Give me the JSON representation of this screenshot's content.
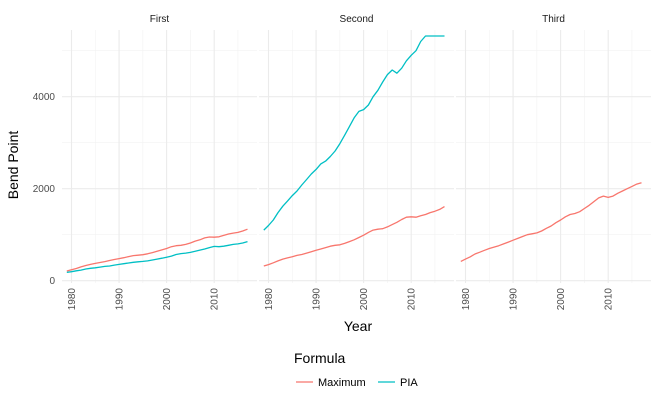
{
  "chart_data": {
    "type": "line",
    "facets": [
      "First",
      "Second",
      "Third"
    ],
    "xlabel": "Year",
    "ylabel": "Bend Point",
    "xlim": [
      1978,
      2019
    ],
    "ylim": [
      -50,
      5450
    ],
    "x_ticks": [
      1980,
      1990,
      2000,
      2010
    ],
    "y_ticks": [
      0,
      2000,
      4000
    ],
    "y_tick_labels": [
      "0",
      "2000",
      "4000"
    ],
    "legend": {
      "title": "Formula",
      "position": "bottom",
      "items": [
        {
          "name": "Maximum",
          "color": "#F8766D"
        },
        {
          "name": "PIA",
          "color": "#00BFC4"
        }
      ]
    },
    "series": [
      {
        "facet": "First",
        "name": "Maximum",
        "color": "#F8766D",
        "x": [
          1979,
          1980,
          1981,
          1982,
          1983,
          1984,
          1985,
          1986,
          1987,
          1988,
          1989,
          1990,
          1991,
          1992,
          1993,
          1994,
          1995,
          1996,
          1997,
          1998,
          1999,
          2000,
          2001,
          2002,
          2003,
          2004,
          2005,
          2006,
          2007,
          2008,
          2009,
          2010,
          2011,
          2012,
          2013,
          2014,
          2015,
          2016,
          2017
        ],
        "y": [
          210,
          240,
          265,
          300,
          330,
          355,
          375,
          395,
          415,
          440,
          460,
          480,
          500,
          525,
          545,
          555,
          565,
          585,
          610,
          640,
          670,
          700,
          740,
          760,
          770,
          790,
          820,
          860,
          890,
          930,
          950,
          945,
          955,
          985,
          1015,
          1035,
          1050,
          1080,
          1120
        ]
      },
      {
        "facet": "First",
        "name": "PIA",
        "color": "#00BFC4",
        "x": [
          1979,
          1980,
          1981,
          1982,
          1983,
          1984,
          1985,
          1986,
          1987,
          1988,
          1989,
          1990,
          1991,
          1992,
          1993,
          1994,
          1995,
          1996,
          1997,
          1998,
          1999,
          2000,
          2001,
          2002,
          2003,
          2004,
          2005,
          2006,
          2007,
          2008,
          2009,
          2010,
          2011,
          2012,
          2013,
          2014,
          2015,
          2016,
          2017
        ],
        "y": [
          180,
          195,
          215,
          230,
          255,
          270,
          280,
          295,
          310,
          320,
          340,
          355,
          370,
          385,
          400,
          410,
          420,
          430,
          450,
          470,
          490,
          510,
          535,
          570,
          590,
          600,
          615,
          640,
          665,
          690,
          720,
          745,
          740,
          750,
          770,
          790,
          800,
          820,
          850
        ]
      },
      {
        "facet": "Second",
        "name": "Maximum",
        "color": "#F8766D",
        "x": [
          1979,
          1980,
          1981,
          1982,
          1983,
          1984,
          1985,
          1986,
          1987,
          1988,
          1989,
          1990,
          1991,
          1992,
          1993,
          1994,
          1995,
          1996,
          1997,
          1998,
          1999,
          2000,
          2001,
          2002,
          2003,
          2004,
          2005,
          2006,
          2007,
          2008,
          2009,
          2010,
          2011,
          2012,
          2013,
          2014,
          2015,
          2016,
          2017
        ],
        "y": [
          320,
          350,
          390,
          430,
          470,
          495,
          520,
          550,
          570,
          600,
          630,
          660,
          690,
          720,
          750,
          770,
          780,
          810,
          850,
          890,
          940,
          990,
          1050,
          1100,
          1120,
          1130,
          1170,
          1220,
          1270,
          1330,
          1380,
          1390,
          1380,
          1410,
          1440,
          1480,
          1510,
          1550,
          1610
        ]
      },
      {
        "facet": "Second",
        "name": "PIA",
        "color": "#00BFC4",
        "x": [
          1979,
          1980,
          1981,
          1982,
          1983,
          1984,
          1985,
          1986,
          1987,
          1988,
          1989,
          1990,
          1991,
          1992,
          1993,
          1994,
          1995,
          1996,
          1997,
          1998,
          1999,
          2000,
          2001,
          2002,
          2003,
          2004,
          2005,
          2006,
          2007,
          2008,
          2009,
          2010,
          2011,
          2012,
          2013,
          2014,
          2015,
          2016,
          2017
        ],
        "y": [
          1100,
          1200,
          1320,
          1480,
          1620,
          1730,
          1850,
          1950,
          2080,
          2200,
          2320,
          2420,
          2540,
          2600,
          2700,
          2820,
          2980,
          3160,
          3350,
          3540,
          3680,
          3720,
          3820,
          4000,
          4140,
          4320,
          4480,
          4580,
          4510,
          4620,
          4780,
          4900,
          5000,
          5200,
          5320,
          5320,
          5320,
          5320,
          5320
        ]
      },
      {
        "facet": "Third",
        "name": "Maximum",
        "color": "#F8766D",
        "x": [
          1979,
          1980,
          1981,
          1982,
          1983,
          1984,
          1985,
          1986,
          1987,
          1988,
          1989,
          1990,
          1991,
          1992,
          1993,
          1994,
          1995,
          1996,
          1997,
          1998,
          1999,
          2000,
          2001,
          2002,
          2003,
          2004,
          2005,
          2006,
          2007,
          2008,
          2009,
          2010,
          2011,
          2012,
          2013,
          2014,
          2015,
          2016,
          2017
        ],
        "y": [
          420,
          470,
          520,
          580,
          620,
          660,
          700,
          730,
          760,
          800,
          840,
          880,
          920,
          960,
          1000,
          1020,
          1040,
          1080,
          1140,
          1190,
          1260,
          1320,
          1390,
          1440,
          1460,
          1500,
          1570,
          1640,
          1720,
          1800,
          1840,
          1810,
          1840,
          1900,
          1950,
          2000,
          2050,
          2100,
          2130
        ]
      }
    ]
  }
}
